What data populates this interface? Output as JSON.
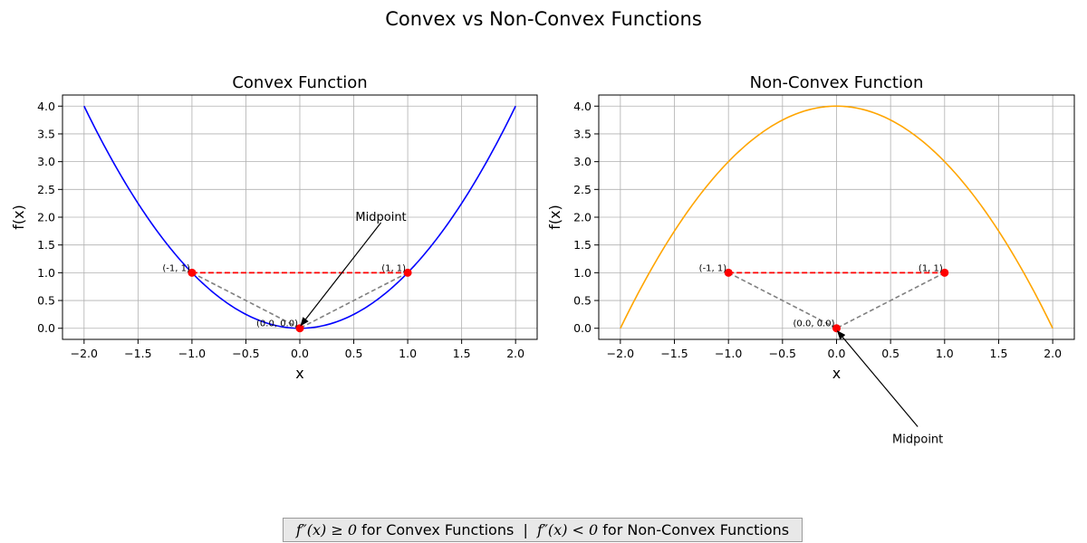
{
  "figure": {
    "suptitle": "Convex vs Non-Convex Functions",
    "footer": {
      "left_expr": "f″(x) ≥ 0",
      "left_text": " for Convex Functions  |  ",
      "right_expr": "f″(x) < 0",
      "right_text": " for Non-Convex Functions"
    }
  },
  "chart_data": [
    {
      "type": "line",
      "title": "Convex Function",
      "xlabel": "x",
      "ylabel": "f(x)",
      "xlim": [
        -2.2,
        2.2
      ],
      "ylim": [
        -0.2,
        4.2
      ],
      "xticks": [
        -2.0,
        -1.5,
        -1.0,
        -0.5,
        0.0,
        0.5,
        1.0,
        1.5,
        2.0
      ],
      "xtick_labels": [
        "−2.0",
        "−1.5",
        "−1.0",
        "−0.5",
        "0.0",
        "0.5",
        "1.0",
        "1.5",
        "2.0"
      ],
      "yticks": [
        0.0,
        0.5,
        1.0,
        1.5,
        2.0,
        2.5,
        3.0,
        3.5,
        4.0
      ],
      "ytick_labels": [
        "0.0",
        "0.5",
        "1.0",
        "1.5",
        "2.0",
        "2.5",
        "3.0",
        "3.5",
        "4.0"
      ],
      "grid": true,
      "curve": {
        "function": "x^2",
        "x_range": [
          -2,
          2
        ],
        "color": "#0000ff"
      },
      "chord": {
        "from": [
          -1,
          1
        ],
        "to": [
          1,
          1
        ],
        "color": "#ff0000"
      },
      "midpoint_lines": {
        "from": [
          [
            -1,
            1
          ],
          [
            1,
            1
          ]
        ],
        "to": [
          0,
          0
        ],
        "color": "#808080"
      },
      "points": [
        {
          "x": -1,
          "y": 1,
          "label": "(-1, 1)"
        },
        {
          "x": 1,
          "y": 1,
          "label": "(1, 1)"
        },
        {
          "x": 0,
          "y": 0,
          "label": "(0.0, 0.0)"
        }
      ],
      "point_color": "#ff0000",
      "annotation": {
        "text": "Midpoint",
        "xy": [
          0,
          0
        ],
        "xytext": [
          0.5,
          2.0
        ]
      }
    },
    {
      "type": "line",
      "title": "Non-Convex Function",
      "xlabel": "x",
      "ylabel": "f(x)",
      "xlim": [
        -2.2,
        2.2
      ],
      "ylim": [
        -0.2,
        4.2
      ],
      "xticks": [
        -2.0,
        -1.5,
        -1.0,
        -0.5,
        0.0,
        0.5,
        1.0,
        1.5,
        2.0
      ],
      "xtick_labels": [
        "−2.0",
        "−1.5",
        "−1.0",
        "−0.5",
        "0.0",
        "0.5",
        "1.0",
        "1.5",
        "2.0"
      ],
      "yticks": [
        0.0,
        0.5,
        1.0,
        1.5,
        2.0,
        2.5,
        3.0,
        3.5,
        4.0
      ],
      "ytick_labels": [
        "0.0",
        "0.5",
        "1.0",
        "1.5",
        "2.0",
        "2.5",
        "3.0",
        "3.5",
        "4.0"
      ],
      "grid": true,
      "curve": {
        "function": "4 - x^2",
        "x_range": [
          -2,
          2
        ],
        "color": "#ffa500"
      },
      "chord": {
        "from": [
          -1,
          1
        ],
        "to": [
          1,
          1
        ],
        "color": "#ff0000"
      },
      "midpoint_lines": {
        "from": [
          [
            -1,
            1
          ],
          [
            1,
            1
          ]
        ],
        "to": [
          0,
          0
        ],
        "color": "#808080"
      },
      "points": [
        {
          "x": -1,
          "y": 1,
          "label": "(-1, 1)"
        },
        {
          "x": 1,
          "y": 1,
          "label": "(1, 1)"
        },
        {
          "x": 0,
          "y": 0,
          "label": "(0.0, 0.0)"
        }
      ],
      "point_color": "#ff0000",
      "annotation": {
        "text": "Midpoint",
        "xy": [
          0,
          0
        ],
        "xytext": [
          0.5,
          -2.0
        ]
      }
    }
  ]
}
